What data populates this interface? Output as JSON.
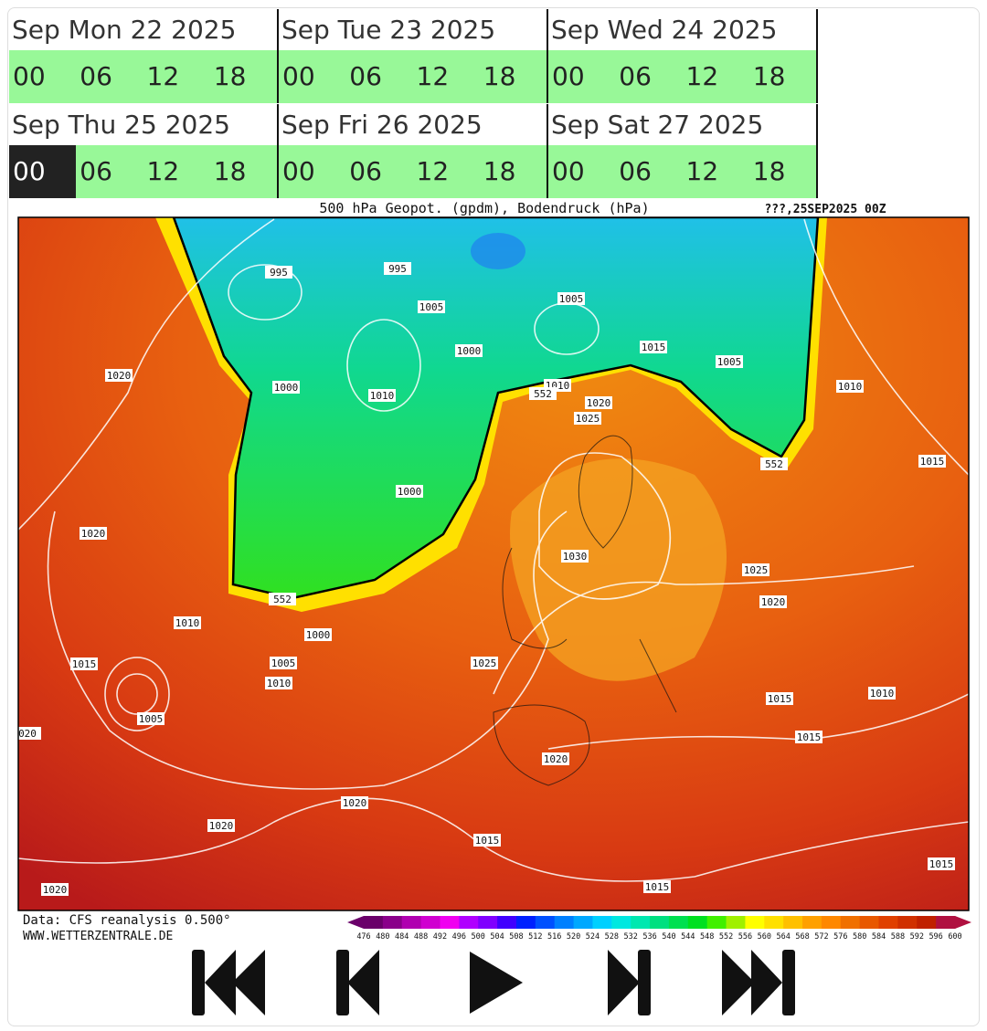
{
  "days": [
    {
      "label": "Sep Mon 22 2025",
      "hours": [
        "00",
        "06",
        "12",
        "18"
      ]
    },
    {
      "label": "Sep Tue 23 2025",
      "hours": [
        "00",
        "06",
        "12",
        "18"
      ]
    },
    {
      "label": "Sep Wed 24 2025",
      "hours": [
        "00",
        "06",
        "12",
        "18"
      ]
    },
    {
      "label": "Sep Thu 25 2025",
      "hours": [
        "00",
        "06",
        "12",
        "18"
      ]
    },
    {
      "label": "Sep Fri 26 2025",
      "hours": [
        "00",
        "06",
        "12",
        "18"
      ]
    },
    {
      "label": "Sep Sat 27 2025",
      "hours": [
        "00",
        "06",
        "12",
        "18"
      ]
    }
  ],
  "selected_day": "Sep Thu 25 2025",
  "selected_hour": "00",
  "map": {
    "title": "500 hPa Geopot. (gpdm), Bodendruck (hPa)",
    "timestamp": "???,25SEP2025 00Z",
    "source": "Data: CFS reanalysis 0.500°",
    "site": "WWW.WETTERZENTRALE.DE",
    "isobar_labels": [
      "995",
      "995",
      "1005",
      "1005",
      "1000",
      "1015",
      "1005",
      "1000",
      "1010",
      "1010",
      "552",
      "1020",
      "1025",
      "1010",
      "1020",
      "1000",
      "552",
      "1015",
      "1020",
      "1030",
      "1025",
      "1020",
      "552",
      "1010",
      "1000",
      "1005",
      "1010",
      "1025",
      "1015",
      "1005",
      "1015",
      "1010",
      "020",
      "1015",
      "1020",
      "1020",
      "1020",
      "1015",
      "1015",
      "1015",
      "1020"
    ]
  },
  "legend": {
    "labels": [
      476,
      480,
      484,
      488,
      492,
      496,
      500,
      504,
      508,
      512,
      516,
      520,
      524,
      528,
      532,
      536,
      540,
      544,
      548,
      552,
      556,
      560,
      564,
      568,
      572,
      576,
      580,
      584,
      588,
      592,
      596,
      600
    ],
    "colors": [
      "#6a006a",
      "#8a008a",
      "#b000b0",
      "#d000d0",
      "#f000f0",
      "#b000ff",
      "#8000ff",
      "#4000ff",
      "#0020ff",
      "#0050ff",
      "#0080ff",
      "#00a8ff",
      "#00d0ff",
      "#00e8e0",
      "#00e8b0",
      "#00e080",
      "#00e050",
      "#00e020",
      "#40f000",
      "#a0f000",
      "#ffff00",
      "#ffe000",
      "#ffc000",
      "#ffa000",
      "#ff8800",
      "#f07000",
      "#e85800",
      "#e04000",
      "#d03000",
      "#c02000",
      "#b01040"
    ]
  }
}
